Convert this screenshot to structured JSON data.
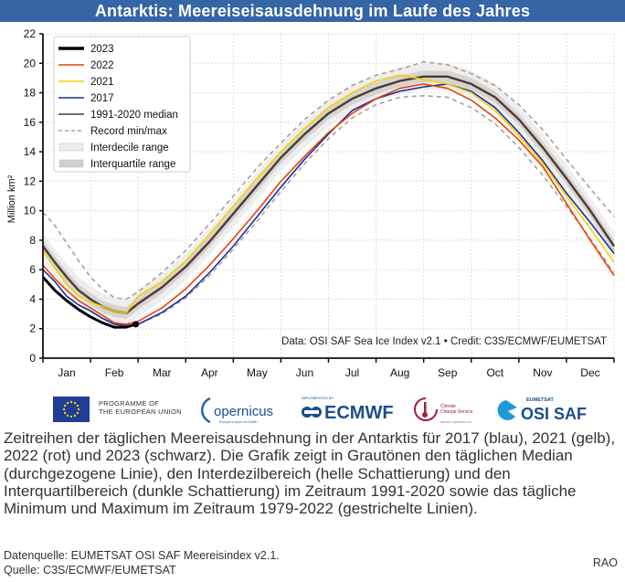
{
  "header": {
    "title": "Antarktis: Meereiseisausdehnung im Laufe des Jahres"
  },
  "chart_data": {
    "type": "line",
    "title": "Antarktis: Meereiseisausdehnung im Laufe des Jahres",
    "xlabel": "",
    "ylabel": "Million km²",
    "ylim": [
      0,
      22
    ],
    "xlim": [
      0,
      12
    ],
    "y_ticks": [
      0,
      2,
      4,
      6,
      8,
      10,
      12,
      14,
      16,
      18,
      20,
      22
    ],
    "x_tick_labels": [
      "Jan",
      "Feb",
      "Mar",
      "Apr",
      "May",
      "Jun",
      "Jul",
      "Aug",
      "Sep",
      "Oct",
      "Nov",
      "Dec"
    ],
    "grid": true,
    "legend_position": "top-left",
    "annotation": "Data: OSI SAF Sea Ice Index v2.1 • Credit: C3S/ECMWF/EUMETSAT",
    "x_units": "months since Jan 1",
    "series": [
      {
        "name": "2023",
        "color": "#000000",
        "style": "solid-thick",
        "points": [
          [
            0,
            5.5
          ],
          [
            0.25,
            4.6
          ],
          [
            0.5,
            3.9
          ],
          [
            0.75,
            3.3
          ],
          [
            1.0,
            2.8
          ],
          [
            1.25,
            2.4
          ],
          [
            1.5,
            2.1
          ],
          [
            1.75,
            2.1
          ],
          [
            1.95,
            2.3
          ]
        ]
      },
      {
        "name": "2022",
        "color": "#e8410a",
        "style": "solid",
        "points": [
          [
            0,
            6.3
          ],
          [
            0.25,
            5.4
          ],
          [
            0.5,
            4.6
          ],
          [
            0.75,
            3.9
          ],
          [
            1.0,
            3.4
          ],
          [
            1.25,
            2.9
          ],
          [
            1.5,
            2.4
          ],
          [
            1.75,
            2.3
          ],
          [
            2.0,
            2.5
          ],
          [
            2.5,
            3.4
          ],
          [
            3.0,
            4.7
          ],
          [
            3.5,
            6.3
          ],
          [
            4.0,
            8.1
          ],
          [
            4.5,
            10.0
          ],
          [
            5.0,
            12.0
          ],
          [
            5.5,
            13.7
          ],
          [
            6.0,
            15.3
          ],
          [
            6.5,
            16.6
          ],
          [
            7.0,
            17.6
          ],
          [
            7.5,
            18.3
          ],
          [
            8.0,
            18.6
          ],
          [
            8.5,
            18.3
          ],
          [
            9.0,
            17.5
          ],
          [
            9.5,
            16.3
          ],
          [
            10.0,
            14.8
          ],
          [
            10.5,
            13.0
          ],
          [
            11.0,
            10.5
          ],
          [
            11.5,
            8.0
          ],
          [
            12.0,
            5.6
          ]
        ]
      },
      {
        "name": "2021",
        "color": "#f5d000",
        "style": "solid",
        "points": [
          [
            0,
            7.3
          ],
          [
            0.25,
            6.1
          ],
          [
            0.5,
            5.0
          ],
          [
            0.75,
            4.2
          ],
          [
            1.0,
            3.8
          ],
          [
            1.25,
            3.5
          ],
          [
            1.5,
            3.2
          ],
          [
            1.75,
            3.05
          ],
          [
            2.0,
            4.2
          ],
          [
            2.5,
            5.2
          ],
          [
            3.0,
            6.6
          ],
          [
            3.5,
            8.4
          ],
          [
            4.0,
            10.3
          ],
          [
            4.5,
            12.2
          ],
          [
            5.0,
            14.0
          ],
          [
            5.5,
            15.6
          ],
          [
            6.0,
            17.0
          ],
          [
            6.5,
            18.0
          ],
          [
            7.0,
            18.8
          ],
          [
            7.5,
            19.2
          ],
          [
            8.0,
            18.9
          ],
          [
            8.5,
            18.6
          ],
          [
            9.0,
            18.0
          ],
          [
            9.5,
            16.8
          ],
          [
            10.0,
            15.1
          ],
          [
            10.5,
            13.2
          ],
          [
            11.0,
            11.0
          ],
          [
            11.5,
            8.8
          ],
          [
            12.0,
            6.5
          ]
        ]
      },
      {
        "name": "2017",
        "color": "#1c2f9c",
        "style": "solid",
        "points": [
          [
            0,
            6.0
          ],
          [
            0.25,
            5.2
          ],
          [
            0.5,
            4.2
          ],
          [
            0.75,
            3.6
          ],
          [
            1.0,
            3.2
          ],
          [
            1.25,
            2.7
          ],
          [
            1.5,
            2.3
          ],
          [
            1.75,
            2.2
          ],
          [
            2.0,
            2.3
          ],
          [
            2.5,
            3.1
          ],
          [
            3.0,
            4.2
          ],
          [
            3.5,
            5.8
          ],
          [
            4.0,
            7.6
          ],
          [
            4.5,
            9.6
          ],
          [
            5.0,
            11.6
          ],
          [
            5.5,
            13.5
          ],
          [
            6.0,
            15.2
          ],
          [
            6.5,
            16.8
          ],
          [
            7.0,
            17.6
          ],
          [
            7.5,
            18.1
          ],
          [
            8.0,
            18.4
          ],
          [
            8.5,
            18.6
          ],
          [
            9.0,
            18.1
          ],
          [
            9.5,
            17.0
          ],
          [
            10.0,
            15.3
          ],
          [
            10.5,
            13.4
          ],
          [
            11.0,
            11.2
          ],
          [
            11.5,
            9.2
          ],
          [
            12.0,
            7.1
          ]
        ]
      },
      {
        "name": "1991-2020 median",
        "color": "#4a3c33",
        "style": "solid-medium",
        "points": [
          [
            0,
            7.6
          ],
          [
            0.25,
            6.5
          ],
          [
            0.5,
            5.5
          ],
          [
            0.75,
            4.6
          ],
          [
            1.0,
            4.0
          ],
          [
            1.25,
            3.5
          ],
          [
            1.5,
            3.2
          ],
          [
            1.75,
            3.05
          ],
          [
            2.0,
            3.7
          ],
          [
            2.5,
            4.8
          ],
          [
            3.0,
            6.2
          ],
          [
            3.5,
            7.9
          ],
          [
            4.0,
            9.8
          ],
          [
            4.5,
            11.7
          ],
          [
            5.0,
            13.6
          ],
          [
            5.5,
            15.2
          ],
          [
            6.0,
            16.6
          ],
          [
            6.5,
            17.6
          ],
          [
            7.0,
            18.3
          ],
          [
            7.5,
            18.8
          ],
          [
            8.0,
            19.1
          ],
          [
            8.5,
            19.1
          ],
          [
            9.0,
            18.6
          ],
          [
            9.5,
            17.7
          ],
          [
            10.0,
            16.2
          ],
          [
            10.5,
            14.3
          ],
          [
            11.0,
            12.2
          ],
          [
            11.5,
            10.0
          ],
          [
            12.0,
            7.6
          ]
        ]
      },
      {
        "name": "Record min/max",
        "color": "#a9a09a",
        "style": "dashed",
        "points_max": [
          [
            0,
            9.9
          ],
          [
            0.25,
            9.0
          ],
          [
            0.5,
            7.8
          ],
          [
            0.75,
            6.6
          ],
          [
            1.0,
            5.5
          ],
          [
            1.25,
            4.7
          ],
          [
            1.5,
            4.1
          ],
          [
            1.75,
            4.0
          ],
          [
            2.0,
            4.5
          ],
          [
            2.5,
            5.8
          ],
          [
            3.0,
            7.3
          ],
          [
            3.5,
            9.1
          ],
          [
            4.0,
            11.0
          ],
          [
            4.5,
            12.9
          ],
          [
            5.0,
            14.6
          ],
          [
            5.5,
            16.2
          ],
          [
            6.0,
            17.5
          ],
          [
            6.5,
            18.5
          ],
          [
            7.0,
            19.2
          ],
          [
            7.5,
            19.6
          ],
          [
            8.0,
            20.1
          ],
          [
            8.5,
            19.9
          ],
          [
            9.0,
            19.3
          ],
          [
            9.5,
            18.5
          ],
          [
            10.0,
            17.2
          ],
          [
            10.5,
            15.5
          ],
          [
            11.0,
            13.5
          ],
          [
            11.5,
            11.5
          ],
          [
            12.0,
            9.6
          ]
        ],
        "points_min": [
          [
            0,
            5.5
          ],
          [
            0.25,
            4.6
          ],
          [
            0.5,
            3.9
          ],
          [
            0.75,
            3.3
          ],
          [
            1.0,
            2.8
          ],
          [
            1.25,
            2.4
          ],
          [
            1.5,
            2.1
          ],
          [
            1.75,
            2.1
          ],
          [
            2.0,
            2.3
          ],
          [
            2.5,
            3.0
          ],
          [
            3.0,
            4.1
          ],
          [
            3.5,
            5.6
          ],
          [
            4.0,
            7.4
          ],
          [
            4.5,
            9.3
          ],
          [
            5.0,
            11.3
          ],
          [
            5.5,
            13.2
          ],
          [
            6.0,
            14.9
          ],
          [
            6.5,
            16.3
          ],
          [
            7.0,
            17.2
          ],
          [
            7.5,
            17.7
          ],
          [
            8.0,
            17.8
          ],
          [
            8.5,
            17.7
          ],
          [
            9.0,
            17.0
          ],
          [
            9.5,
            15.9
          ],
          [
            10.0,
            14.3
          ],
          [
            10.5,
            12.4
          ],
          [
            11.0,
            10.3
          ],
          [
            11.5,
            8.1
          ],
          [
            12.0,
            5.8
          ]
        ]
      },
      {
        "name": "Interdecile range",
        "color": "#ececec",
        "style": "band",
        "offset": 0.9
      },
      {
        "name": "Interquartile range",
        "color": "#d3cfcc",
        "style": "band",
        "offset": 0.4
      }
    ]
  },
  "logos": {
    "eu_text_1": "PROGRAMME OF",
    "eu_text_2": "THE EUROPEAN UNION",
    "copernicus": "opernicus",
    "copernicus_sub": "Europe's eyes on Earth",
    "ecmwf_top": "IMPLEMENTED BY",
    "ecmwf": "ECMWF",
    "c3s_1": "Climate",
    "c3s_2": "Change Service",
    "c3s_3": "climate.copernicus.eu",
    "eumetsat": "EUMETSAT",
    "osisaf": "OSI SAF"
  },
  "caption": "Zeitreihen der täglichen Meereisausdehnung in der Antarktis für 2017 (blau), 2021 (gelb), 2022 (rot) und 2023 (schwarz). Die Grafik zeigt in Grautönen den täglichen Median (durchgezogene Linie), den Interdezilbereich (helle Schattierung) und den Interquartilbereich (dunkle Schattierung) im Zeitraum 1991-2020 sowie das tägliche Minimum und Maximum im Zeitraum 1979-2022 (gestrichelte Linien).",
  "source": {
    "line1": "Datenquelle: EUMETSAT OSI SAF Meereisindex v2.1.",
    "line2": "Quelle: C3S/ECMWF/EUMETSAT"
  },
  "author": "RAO"
}
